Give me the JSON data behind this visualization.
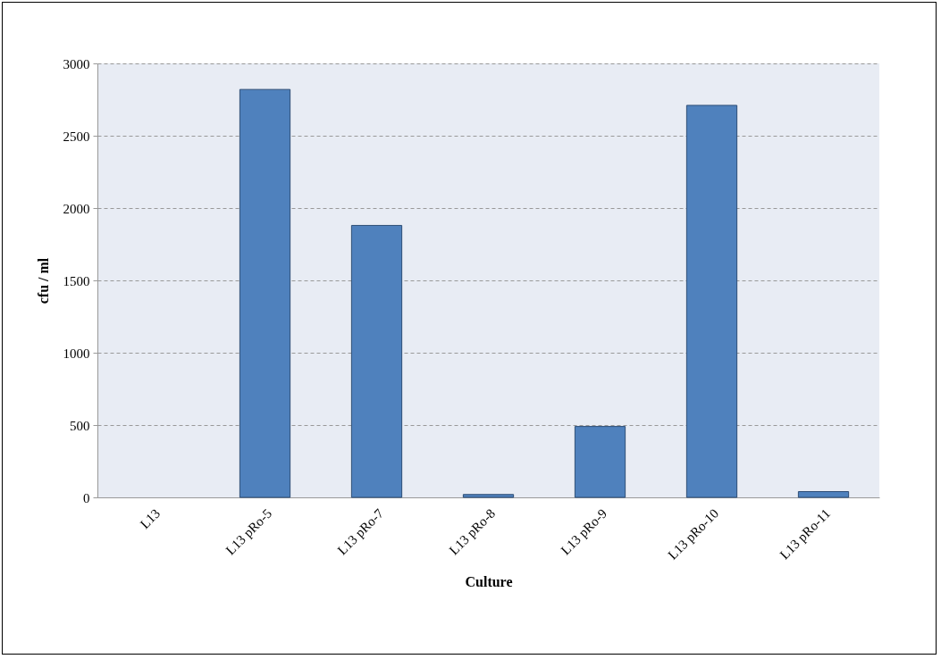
{
  "chart_data": {
    "type": "bar",
    "xlabel": "Culture",
    "ylabel": "cfu / ml",
    "categories": [
      "L13",
      "L13 pRo-5",
      "L13 pRo-7",
      "L13 pRo-8",
      "L13 pRo-9",
      "L13 pRo-10",
      "L13 pRo-11"
    ],
    "values": [
      0,
      2820,
      1880,
      20,
      490,
      2710,
      40
    ],
    "color": "#4f81bd",
    "ylim": [
      0,
      3000
    ],
    "yticks": [
      0,
      500,
      1000,
      1500,
      2000,
      2500,
      3000
    ],
    "grid": "y"
  }
}
